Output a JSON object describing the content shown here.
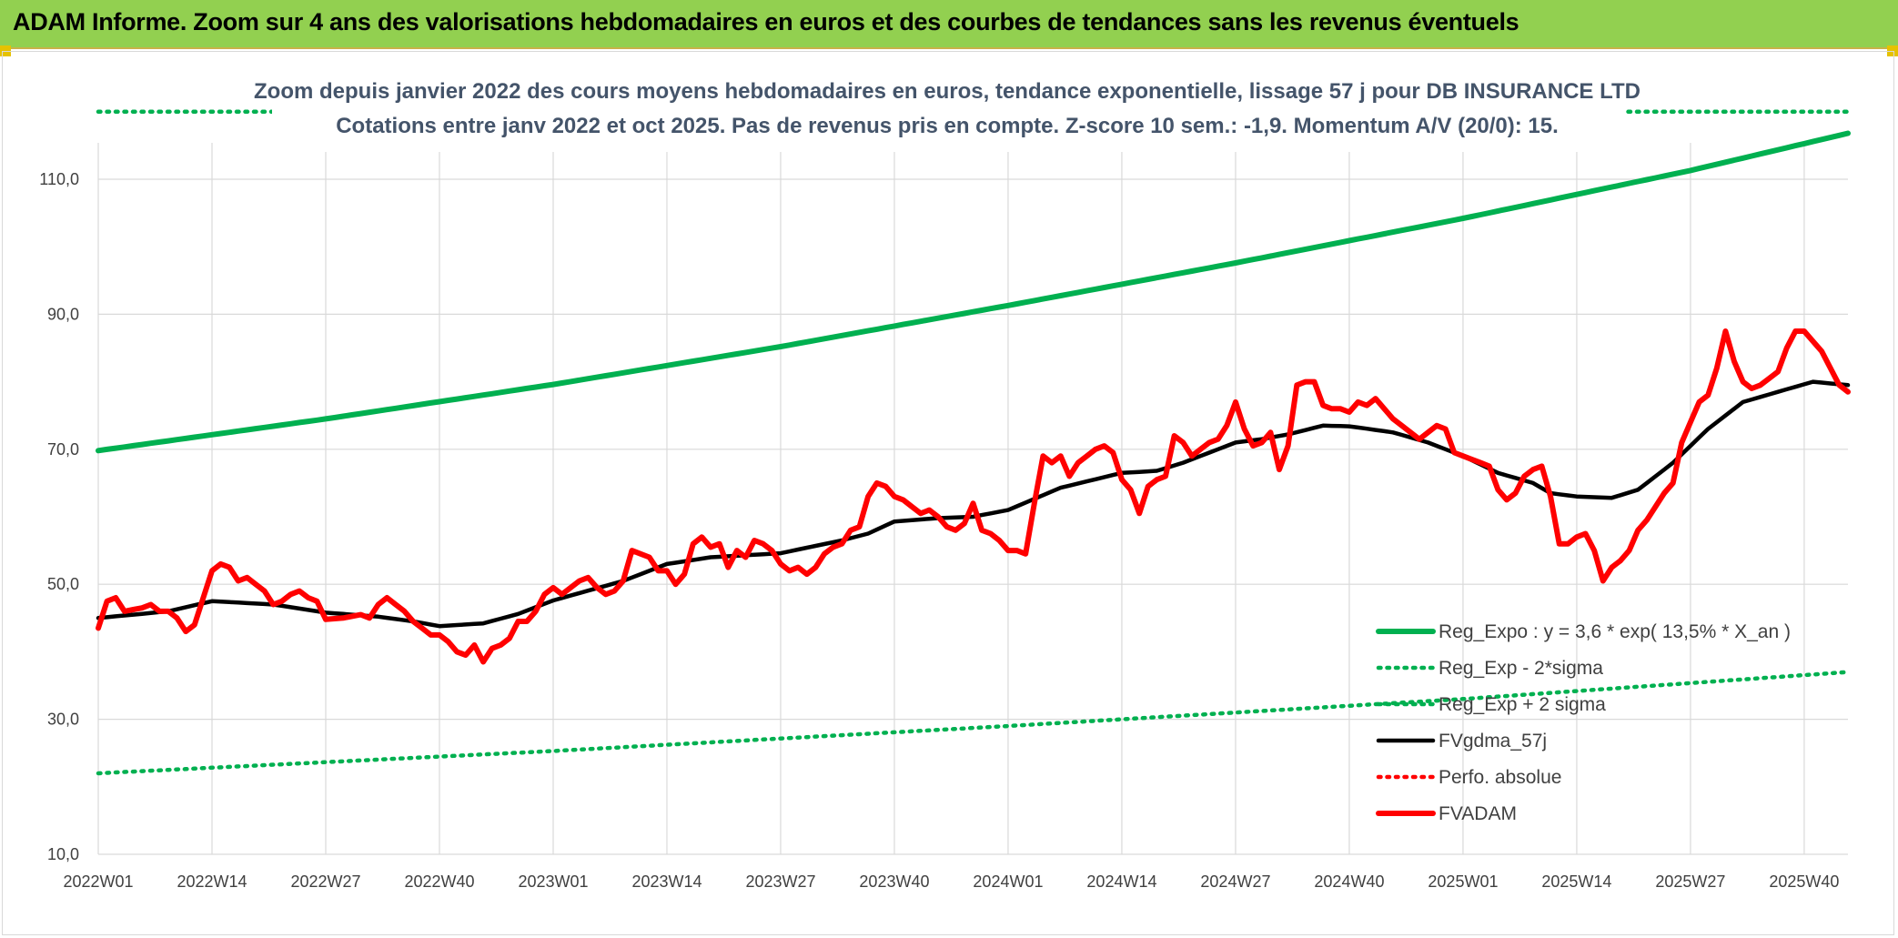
{
  "banner": {
    "title": "ADAM Informe. Zoom sur 4 ans des valorisations hebdomadaires en euros et des courbes de tendances sans les revenus éventuels"
  },
  "colors": {
    "banner_bg": "#92d050",
    "reg_expo": "#00b050",
    "fvgdma": "#000000",
    "fvadam": "#ff0000",
    "grid": "#d9d9d9"
  },
  "chart_data": {
    "type": "line",
    "title": "Zoom depuis janvier 2022 des cours moyens hebdomadaires en euros, tendance exponentielle, lissage 57 j pour DB INSURANCE LTD",
    "subtitle": "Cotations entre janv 2022 et oct 2025. Pas de revenus pris en compte. Z-score 10 sem.: -1,9. Momentum A/V (20/0): 15.",
    "xlabel": "",
    "ylabel": "",
    "ylim": [
      10,
      120
    ],
    "yticks": [
      "110,0",
      "90,0",
      "70,0",
      "50,0",
      "30,0",
      "10,0"
    ],
    "ytick_values": [
      110,
      90,
      70,
      50,
      30,
      10
    ],
    "xticks": [
      "2022W01",
      "2022W14",
      "2022W27",
      "2022W40",
      "2023W01",
      "2023W14",
      "2023W27",
      "2023W40",
      "2024W01",
      "2024W14",
      "2024W27",
      "2024W40",
      "2025W01",
      "2025W14",
      "2025W27",
      "2025W40"
    ],
    "xtick_index": [
      0,
      13,
      26,
      39,
      52,
      65,
      78,
      91,
      104,
      117,
      130,
      143,
      156,
      169,
      182,
      195
    ],
    "n_weeks": 201,
    "legend_position": "bottom-right",
    "series": [
      {
        "name": "Reg_Expo : y = 3,6 * exp( 13,5% *  X_an )",
        "style": "solid-thick",
        "color": "#00b050",
        "keypoints": [
          [
            0,
            69.8
          ],
          [
            26,
            74.5
          ],
          [
            52,
            79.6
          ],
          [
            78,
            85.2
          ],
          [
            104,
            91.3
          ],
          [
            130,
            97.6
          ],
          [
            156,
            104.2
          ],
          [
            182,
            111.3
          ],
          [
            200,
            116.8
          ]
        ]
      },
      {
        "name": "Reg_Exp - 2*sigma",
        "style": "dotted",
        "color": "#00b050",
        "keypoints": [
          [
            0,
            22
          ],
          [
            52,
            25.3
          ],
          [
            104,
            29
          ],
          [
            156,
            33
          ],
          [
            200,
            37
          ]
        ]
      },
      {
        "name": "Reg_Exp + 2 sigma",
        "style": "dotted",
        "color": "#00b050",
        "keypoints": [
          [
            0,
            120
          ],
          [
            200,
            120
          ]
        ]
      },
      {
        "name": "FVgdma_57j",
        "style": "solid",
        "color": "#000000",
        "keypoints": [
          [
            0,
            45
          ],
          [
            8,
            46
          ],
          [
            13,
            47.5
          ],
          [
            20,
            47
          ],
          [
            26,
            45.8
          ],
          [
            32,
            45.2
          ],
          [
            36,
            44.5
          ],
          [
            39,
            43.8
          ],
          [
            44,
            44.2
          ],
          [
            48,
            45.6
          ],
          [
            52,
            47.6
          ],
          [
            60,
            50.5
          ],
          [
            65,
            53
          ],
          [
            70,
            54
          ],
          [
            78,
            54.6
          ],
          [
            85,
            56.5
          ],
          [
            88,
            57.5
          ],
          [
            91,
            59.3
          ],
          [
            96,
            59.8
          ],
          [
            100,
            60
          ],
          [
            104,
            61
          ],
          [
            110,
            64.3
          ],
          [
            117,
            66.5
          ],
          [
            121,
            66.8
          ],
          [
            124,
            68
          ],
          [
            130,
            71
          ],
          [
            133,
            71.5
          ],
          [
            136,
            72.2
          ],
          [
            140,
            73.5
          ],
          [
            143,
            73.4
          ],
          [
            148,
            72.5
          ],
          [
            152,
            71
          ],
          [
            156,
            69
          ],
          [
            160,
            66.5
          ],
          [
            164,
            65
          ],
          [
            166,
            63.5
          ],
          [
            169,
            63
          ],
          [
            173,
            62.8
          ],
          [
            176,
            64
          ],
          [
            180,
            68
          ],
          [
            184,
            73
          ],
          [
            188,
            77
          ],
          [
            192,
            78.5
          ],
          [
            196,
            80
          ],
          [
            200,
            79.5
          ]
        ]
      },
      {
        "name": "Perfo. absolue",
        "style": "dotted",
        "color": "#ff0000",
        "keypoints": []
      },
      {
        "name": "FVADAM",
        "style": "solid-thick",
        "color": "#ff0000",
        "keypoints": [
          [
            0,
            43.5
          ],
          [
            1,
            47.5
          ],
          [
            2,
            48
          ],
          [
            3,
            46
          ],
          [
            5,
            46.5
          ],
          [
            6,
            47
          ],
          [
            7,
            46
          ],
          [
            8,
            46
          ],
          [
            9,
            45
          ],
          [
            10,
            43
          ],
          [
            11,
            44
          ],
          [
            12,
            48
          ],
          [
            13,
            52
          ],
          [
            14,
            53
          ],
          [
            15,
            52.5
          ],
          [
            16,
            50.5
          ],
          [
            17,
            51
          ],
          [
            18,
            50
          ],
          [
            19,
            49
          ],
          [
            20,
            47
          ],
          [
            21,
            47.5
          ],
          [
            22,
            48.5
          ],
          [
            23,
            49
          ],
          [
            24,
            48
          ],
          [
            25,
            47.5
          ],
          [
            26,
            44.8
          ],
          [
            28,
            45
          ],
          [
            30,
            45.5
          ],
          [
            31,
            45
          ],
          [
            32,
            47
          ],
          [
            33,
            48
          ],
          [
            34,
            47
          ],
          [
            35,
            46
          ],
          [
            36,
            44.5
          ],
          [
            37,
            43.5
          ],
          [
            38,
            42.5
          ],
          [
            39,
            42.5
          ],
          [
            40,
            41.5
          ],
          [
            41,
            40
          ],
          [
            42,
            39.5
          ],
          [
            43,
            41
          ],
          [
            44,
            38.5
          ],
          [
            45,
            40.5
          ],
          [
            46,
            41
          ],
          [
            47,
            42
          ],
          [
            48,
            44.5
          ],
          [
            49,
            44.5
          ],
          [
            50,
            46
          ],
          [
            51,
            48.5
          ],
          [
            52,
            49.5
          ],
          [
            53,
            48.5
          ],
          [
            54,
            49.5
          ],
          [
            55,
            50.5
          ],
          [
            56,
            51
          ],
          [
            57,
            49.5
          ],
          [
            58,
            48.5
          ],
          [
            59,
            49
          ],
          [
            60,
            50.5
          ],
          [
            61,
            55
          ],
          [
            62,
            54.5
          ],
          [
            63,
            54
          ],
          [
            64,
            52
          ],
          [
            65,
            52
          ],
          [
            66,
            50
          ],
          [
            67,
            51.5
          ],
          [
            68,
            56
          ],
          [
            69,
            57
          ],
          [
            70,
            55.5
          ],
          [
            71,
            56
          ],
          [
            72,
            52.5
          ],
          [
            73,
            55
          ],
          [
            74,
            54
          ],
          [
            75,
            56.5
          ],
          [
            76,
            56
          ],
          [
            77,
            55
          ],
          [
            78,
            53
          ],
          [
            79,
            52
          ],
          [
            80,
            52.5
          ],
          [
            81,
            51.5
          ],
          [
            82,
            52.5
          ],
          [
            83,
            54.5
          ],
          [
            84,
            55.5
          ],
          [
            85,
            56
          ],
          [
            86,
            58
          ],
          [
            87,
            58.5
          ],
          [
            88,
            63
          ],
          [
            89,
            65
          ],
          [
            90,
            64.5
          ],
          [
            91,
            63
          ],
          [
            92,
            62.5
          ],
          [
            93,
            61.5
          ],
          [
            94,
            60.5
          ],
          [
            95,
            61
          ],
          [
            96,
            60
          ],
          [
            97,
            58.5
          ],
          [
            98,
            58
          ],
          [
            99,
            59
          ],
          [
            100,
            62
          ],
          [
            101,
            58
          ],
          [
            102,
            57.5
          ],
          [
            103,
            56.5
          ],
          [
            104,
            55
          ],
          [
            105,
            55
          ],
          [
            106,
            54.5
          ],
          [
            107,
            62
          ],
          [
            108,
            69
          ],
          [
            109,
            68
          ],
          [
            110,
            69
          ],
          [
            111,
            66
          ],
          [
            112,
            68
          ],
          [
            113,
            69
          ],
          [
            114,
            70
          ],
          [
            115,
            70.5
          ],
          [
            116,
            69.5
          ],
          [
            117,
            65.5
          ],
          [
            118,
            64
          ],
          [
            119,
            60.5
          ],
          [
            120,
            64.5
          ],
          [
            121,
            65.5
          ],
          [
            122,
            66
          ],
          [
            123,
            72
          ],
          [
            124,
            71
          ],
          [
            125,
            69
          ],
          [
            126,
            70
          ],
          [
            127,
            71
          ],
          [
            128,
            71.5
          ],
          [
            129,
            73.5
          ],
          [
            130,
            77
          ],
          [
            131,
            73
          ],
          [
            132,
            70.5
          ],
          [
            133,
            71
          ],
          [
            134,
            72.5
          ],
          [
            135,
            67
          ],
          [
            136,
            70.5
          ],
          [
            137,
            79.5
          ],
          [
            138,
            80
          ],
          [
            139,
            80
          ],
          [
            140,
            76.5
          ],
          [
            141,
            76
          ],
          [
            142,
            76
          ],
          [
            143,
            75.5
          ],
          [
            144,
            77
          ],
          [
            145,
            76.5
          ],
          [
            146,
            77.5
          ],
          [
            147,
            76
          ],
          [
            148,
            74.5
          ],
          [
            149,
            73.5
          ],
          [
            150,
            72.5
          ],
          [
            151,
            71.5
          ],
          [
            152,
            72.5
          ],
          [
            153,
            73.5
          ],
          [
            154,
            73
          ],
          [
            155,
            69.5
          ],
          [
            156,
            69
          ],
          [
            157,
            68.5
          ],
          [
            158,
            68
          ],
          [
            159,
            67.5
          ],
          [
            160,
            64
          ],
          [
            161,
            62.5
          ],
          [
            162,
            63.5
          ],
          [
            163,
            66
          ],
          [
            164,
            67
          ],
          [
            165,
            67.5
          ],
          [
            166,
            63
          ],
          [
            167,
            56
          ],
          [
            168,
            56
          ],
          [
            169,
            57
          ],
          [
            170,
            57.5
          ],
          [
            171,
            55
          ],
          [
            172,
            50.5
          ],
          [
            173,
            52.5
          ],
          [
            174,
            53.5
          ],
          [
            175,
            55
          ],
          [
            176,
            58
          ],
          [
            177,
            59.5
          ],
          [
            178,
            61.5
          ],
          [
            179,
            63.5
          ],
          [
            180,
            65
          ],
          [
            181,
            71
          ],
          [
            182,
            74
          ],
          [
            183,
            77
          ],
          [
            184,
            78
          ],
          [
            185,
            82
          ],
          [
            186,
            87.5
          ],
          [
            187,
            83
          ],
          [
            188,
            80
          ],
          [
            189,
            79
          ],
          [
            190,
            79.5
          ],
          [
            191,
            80.5
          ],
          [
            192,
            81.5
          ],
          [
            193,
            85
          ],
          [
            194,
            87.5
          ],
          [
            195,
            87.5
          ],
          [
            196,
            86
          ],
          [
            197,
            84.5
          ],
          [
            198,
            82
          ],
          [
            199,
            79.5
          ],
          [
            200,
            78.5
          ]
        ]
      }
    ]
  }
}
